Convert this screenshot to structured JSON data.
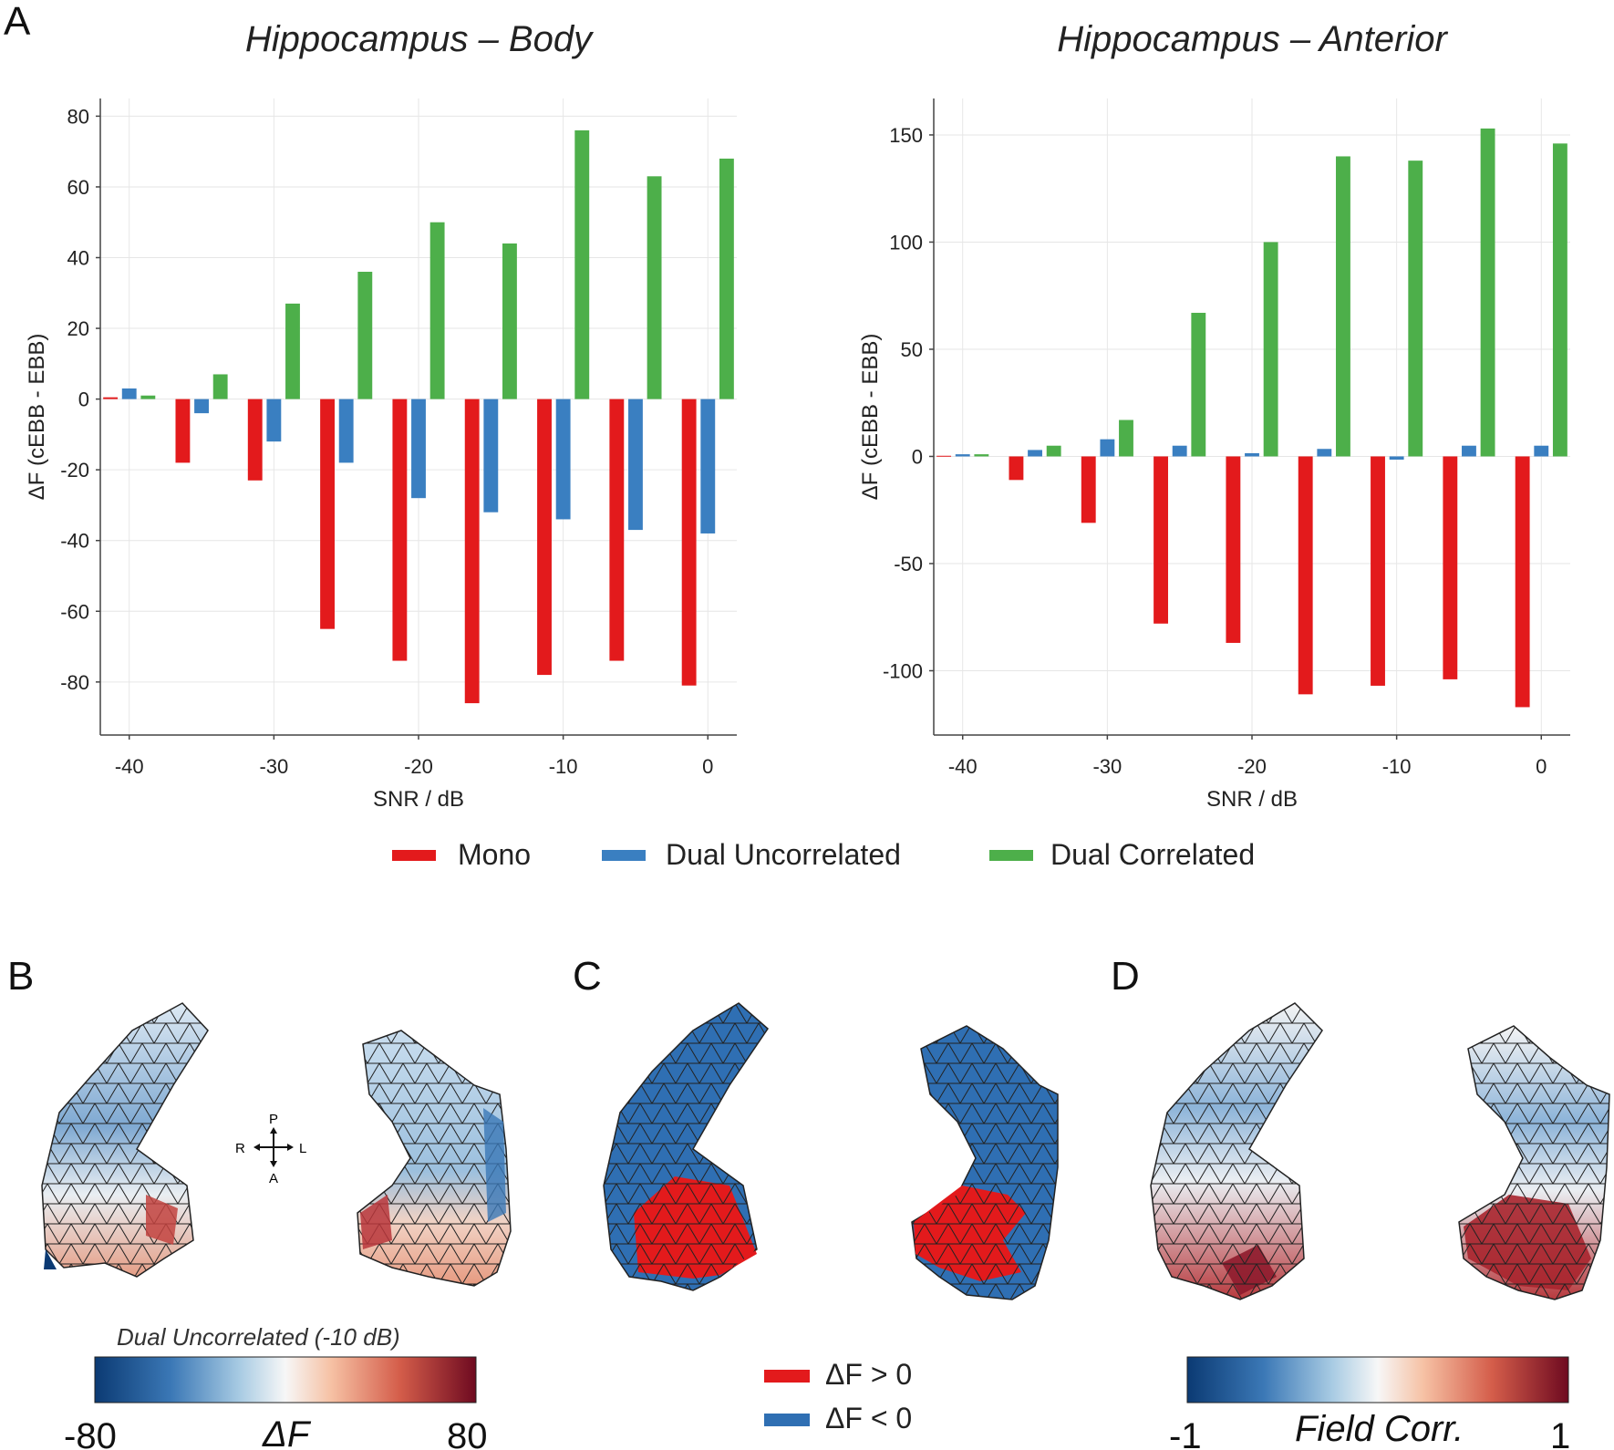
{
  "panels": {
    "A": "A",
    "B": "B",
    "C": "C",
    "D": "D"
  },
  "colors": {
    "mono": "#e31a1c",
    "dual_uncorrelated": "#3a7fc1",
    "dual_correlated": "#4daf4a",
    "grid": "#e6e6e6",
    "axis": "#444444",
    "mesh_red": "#e31a1c",
    "mesh_blue": "#2f6fb3"
  },
  "legend": [
    {
      "label": "Mono",
      "color": "#e31a1c"
    },
    {
      "label": "Dual Uncorrelated",
      "color": "#3a7fc1"
    },
    {
      "label": "Dual Correlated",
      "color": "#4daf4a"
    }
  ],
  "chart_data": [
    {
      "type": "bar",
      "title": "Hippocampus – Body",
      "xlabel": "SNR / dB",
      "ylabel": "ΔF (cEBB - EBB)",
      "x": [
        -40,
        -35,
        -30,
        -25,
        -20,
        -15,
        -10,
        -5,
        0
      ],
      "xticks": [
        -40,
        -30,
        -20,
        -10,
        0
      ],
      "xticklabels": [
        "-40",
        "-30",
        "-20",
        "-10",
        "0"
      ],
      "xlim": [
        -42,
        2
      ],
      "ylim": [
        -95,
        85
      ],
      "yticks": [
        -80,
        -60,
        -40,
        -20,
        0,
        20,
        40,
        60,
        80
      ],
      "yticklabels": [
        "-80",
        "-60",
        "-40",
        "-20",
        "0",
        "20",
        "40",
        "60",
        "80"
      ],
      "grid": true,
      "series": [
        {
          "name": "Mono",
          "values": [
            0.5,
            -18,
            -23,
            -65,
            -74,
            -86,
            -78,
            -74,
            -81
          ]
        },
        {
          "name": "Dual Uncorrelated",
          "values": [
            3,
            -4,
            -12,
            -18,
            -28,
            -32,
            -34,
            -37,
            -38
          ]
        },
        {
          "name": "Dual Correlated",
          "values": [
            1,
            7,
            27,
            36,
            50,
            44,
            76,
            63,
            68
          ]
        }
      ]
    },
    {
      "type": "bar",
      "title": "Hippocampus – Anterior",
      "xlabel": "SNR / dB",
      "ylabel": "ΔF (cEBB - EBB)",
      "x": [
        -40,
        -35,
        -30,
        -25,
        -20,
        -15,
        -10,
        -5,
        0
      ],
      "xticks": [
        -40,
        -30,
        -20,
        -10,
        0
      ],
      "xticklabels": [
        "-40",
        "-30",
        "-20",
        "-10",
        "0"
      ],
      "xlim": [
        -42,
        2
      ],
      "ylim": [
        -130,
        167
      ],
      "yticks": [
        -100,
        -50,
        0,
        50,
        100,
        150
      ],
      "yticklabels": [
        "-100",
        "-50",
        "0",
        "50",
        "100",
        "150"
      ],
      "grid": true,
      "series": [
        {
          "name": "Mono",
          "values": [
            0.3,
            -11,
            -31,
            -78,
            -87,
            -111,
            -107,
            -104,
            -117
          ]
        },
        {
          "name": "Dual Uncorrelated",
          "values": [
            1,
            3,
            8,
            5,
            1.5,
            3.5,
            -1.5,
            5,
            5
          ]
        },
        {
          "name": "Dual Correlated",
          "values": [
            1,
            5,
            17,
            67,
            100,
            140,
            138,
            153,
            146
          ]
        }
      ]
    }
  ],
  "panel_B": {
    "colorbar_title": "Dual Uncorrelated (-10 dB)",
    "colorbar_min": "-80",
    "colorbar_max": "80",
    "colorbar_var": "ΔF",
    "orientation": {
      "up": "P",
      "down": "A",
      "left": "R",
      "right": "L"
    }
  },
  "panel_C": {
    "legend": [
      {
        "label": "ΔF > 0",
        "color": "#e31a1c"
      },
      {
        "label": "ΔF < 0",
        "color": "#2f6fb3"
      }
    ]
  },
  "panel_D": {
    "colorbar_min": "-1",
    "colorbar_max": "1",
    "colorbar_var": "Field Corr."
  }
}
